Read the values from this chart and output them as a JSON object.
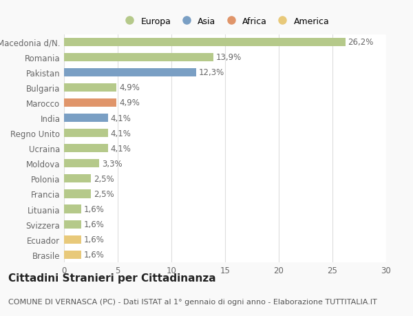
{
  "categories": [
    "Brasile",
    "Ecuador",
    "Svizzera",
    "Lituania",
    "Francia",
    "Polonia",
    "Moldova",
    "Ucraina",
    "Regno Unito",
    "India",
    "Marocco",
    "Bulgaria",
    "Pakistan",
    "Romania",
    "Macedonia d/N."
  ],
  "values": [
    1.6,
    1.6,
    1.6,
    1.6,
    2.5,
    2.5,
    3.3,
    4.1,
    4.1,
    4.1,
    4.9,
    4.9,
    12.3,
    13.9,
    26.2
  ],
  "labels": [
    "1,6%",
    "1,6%",
    "1,6%",
    "1,6%",
    "2,5%",
    "2,5%",
    "3,3%",
    "4,1%",
    "4,1%",
    "4,1%",
    "4,9%",
    "4,9%",
    "12,3%",
    "13,9%",
    "26,2%"
  ],
  "colors": [
    "#e8c97a",
    "#e8c97a",
    "#b5c98a",
    "#b5c98a",
    "#b5c98a",
    "#b5c98a",
    "#b5c98a",
    "#b5c98a",
    "#b5c98a",
    "#7a9fc4",
    "#e0956a",
    "#b5c98a",
    "#7a9fc4",
    "#b5c98a",
    "#b5c98a"
  ],
  "legend_labels": [
    "Europa",
    "Asia",
    "Africa",
    "America"
  ],
  "legend_colors": [
    "#b5c98a",
    "#7a9fc4",
    "#e0956a",
    "#e8c97a"
  ],
  "title": "Cittadini Stranieri per Cittadinanza",
  "subtitle": "COMUNE DI VERNASCA (PC) - Dati ISTAT al 1° gennaio di ogni anno - Elaborazione TUTTITALIA.IT",
  "xlim": [
    0,
    30
  ],
  "xticks": [
    0,
    5,
    10,
    15,
    20,
    25,
    30
  ],
  "background_color": "#f9f9f9",
  "bar_background": "#ffffff",
  "grid_color": "#dddddd",
  "label_color": "#666666",
  "value_color": "#666666",
  "title_fontsize": 11,
  "subtitle_fontsize": 8,
  "tick_fontsize": 8.5,
  "bar_height": 0.55
}
